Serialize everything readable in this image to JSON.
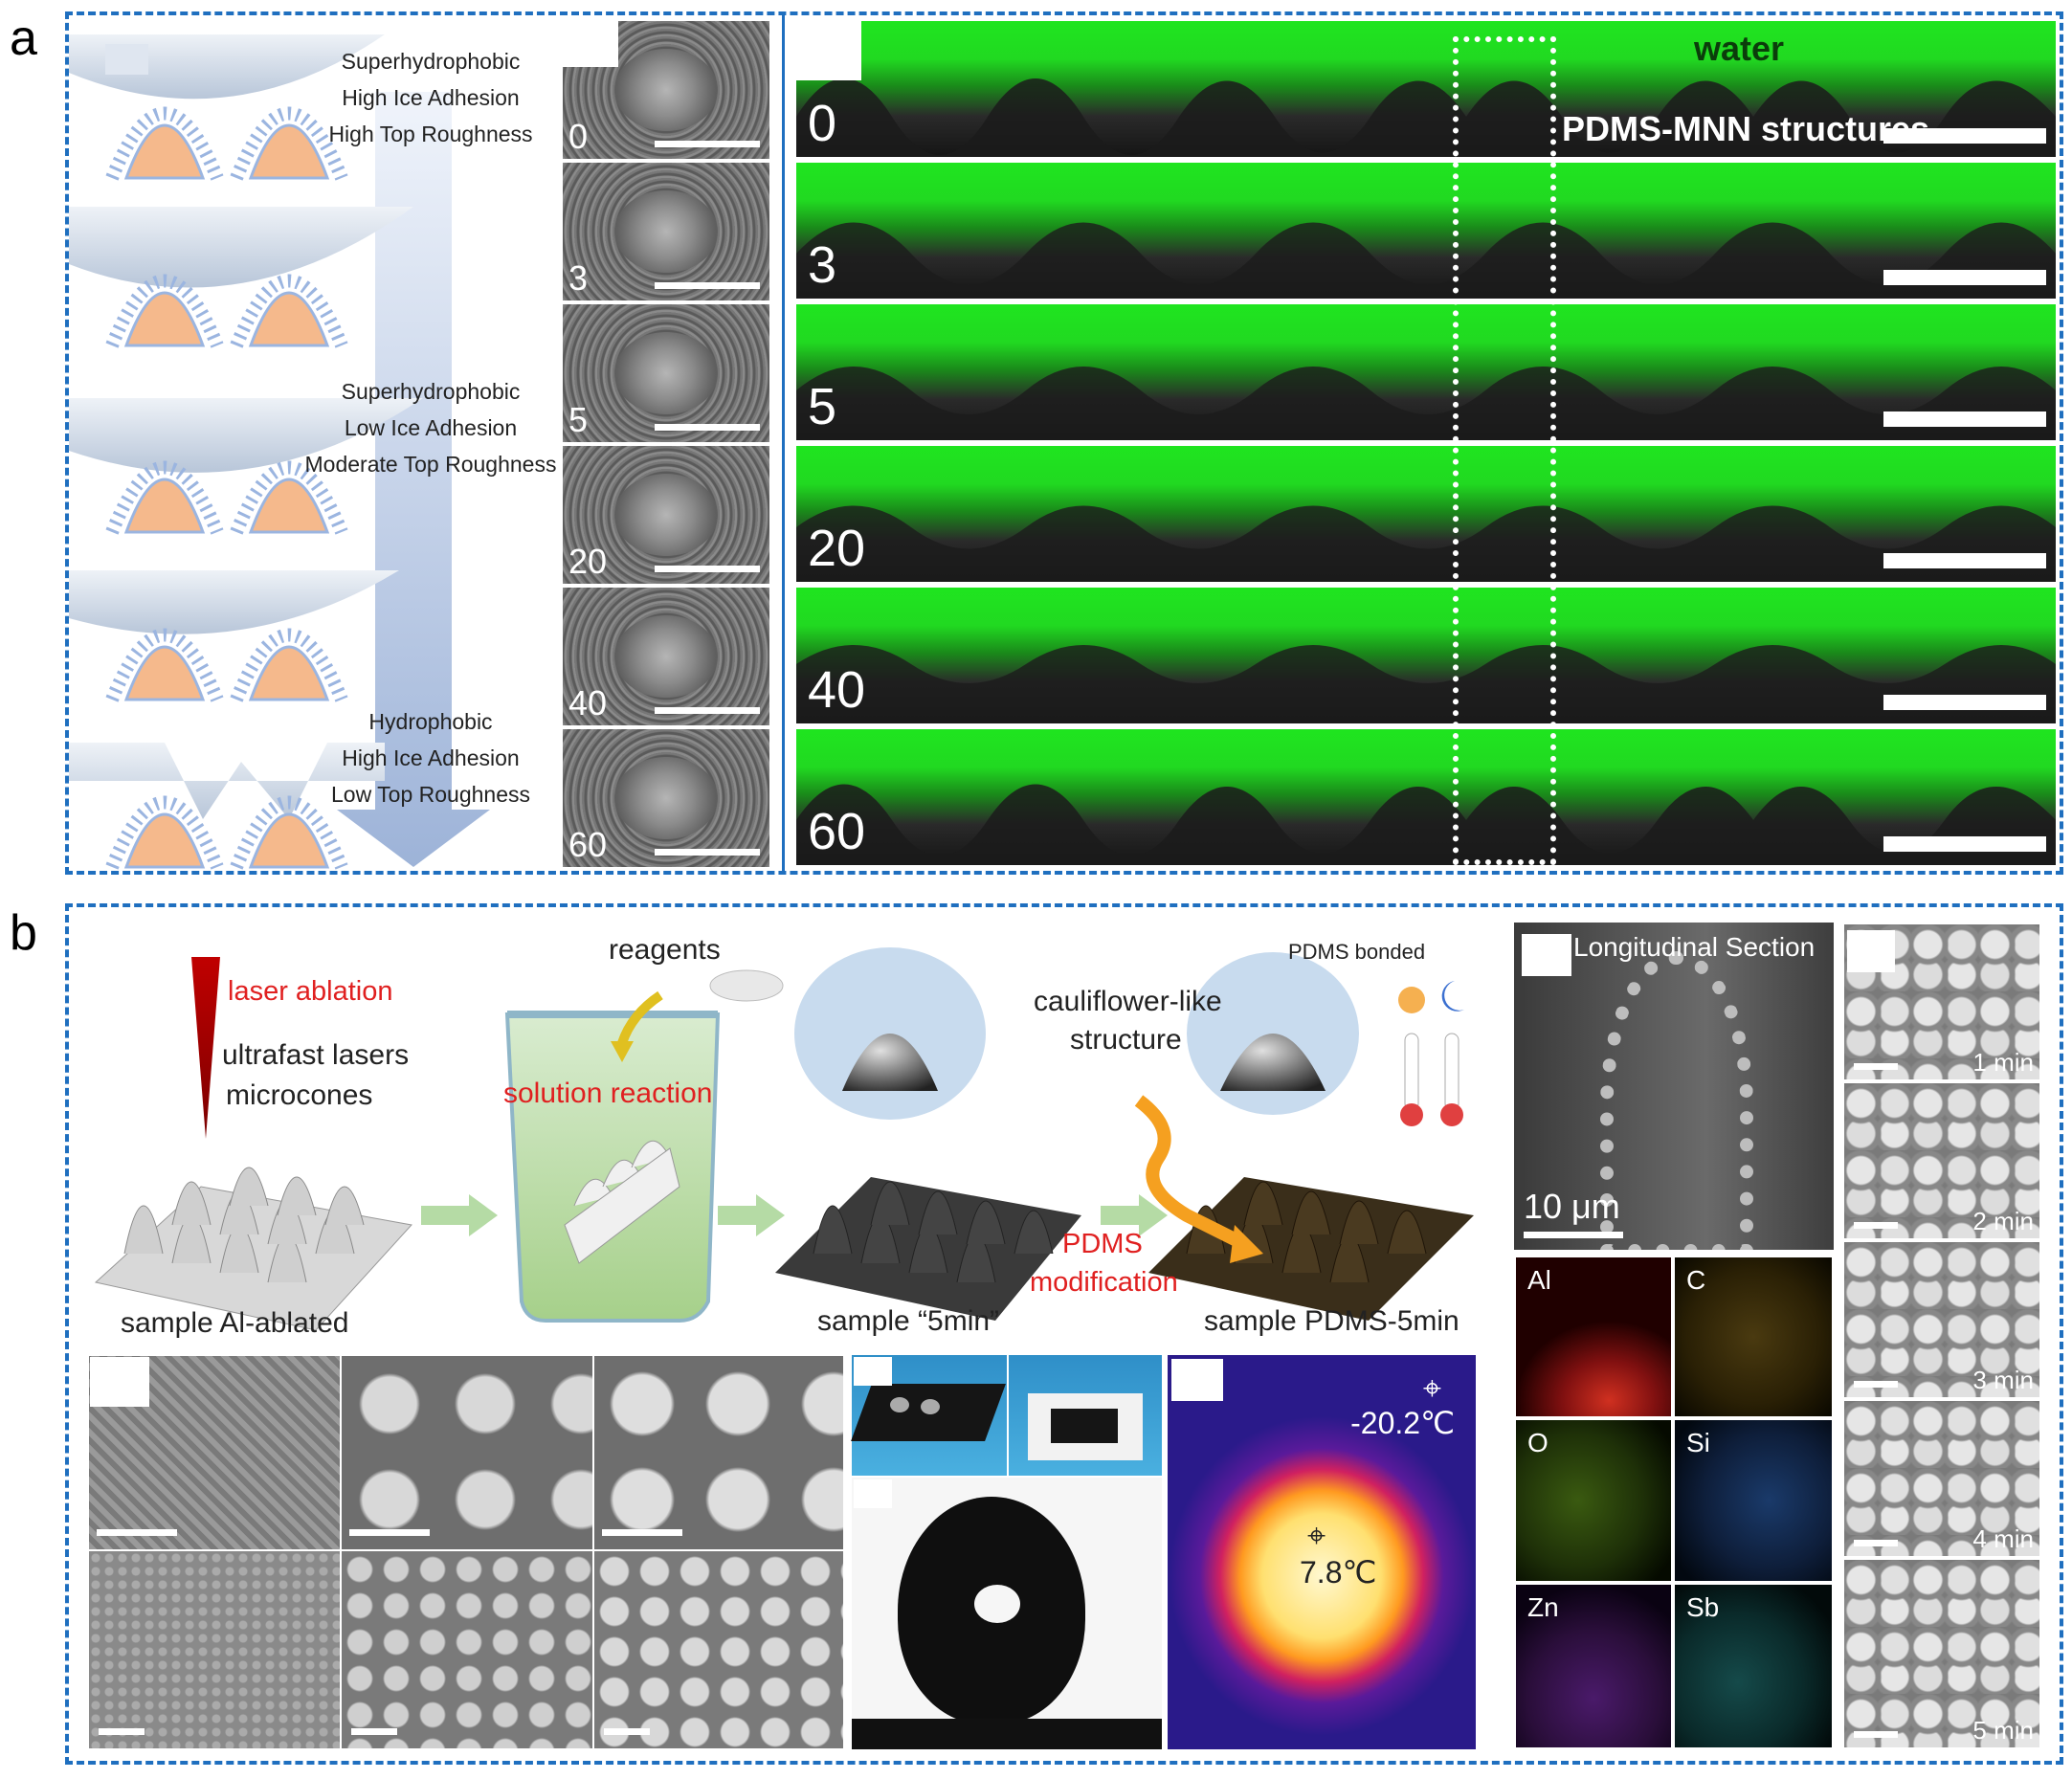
{
  "panel_a": {
    "letter": "a",
    "schematic": {
      "group1": [
        "Superhydrophobic",
        "High Ice Adhesion",
        "High Top Roughness"
      ],
      "group2": [
        "Superhydrophobic",
        "Low Ice Adhesion",
        "Moderate Top Roughness"
      ],
      "group3": [
        "Hydrophobic",
        "High Ice Adhesion",
        "Low Top Roughness"
      ]
    },
    "sem_labels": [
      "0",
      "3",
      "5",
      "20",
      "40",
      "60"
    ],
    "fluorescence": {
      "water_label": "water",
      "structure_label": "PDMS-MNN structures",
      "row_labels": [
        "0",
        "3",
        "5",
        "20",
        "40",
        "60"
      ]
    }
  },
  "panel_b": {
    "letter": "b",
    "process": {
      "laser_ablation": "laser ablation",
      "ultrafast_lasers": "ultrafast lasers",
      "microcones": "microcones",
      "reagents": "reagents",
      "solution_reaction": "solution reaction",
      "cauliflower_1": "cauliflower-like",
      "cauliflower_2": "structure",
      "pdms_bonded": "PDMS bonded",
      "pdms_mod_1": "PDMS",
      "pdms_mod_2": "modification",
      "sample_1": "sample Al-ablated",
      "sample_2": "sample “5min”",
      "sample_3": "sample PDMS-5min"
    },
    "thermal": {
      "temp_ambient": "-20.2℃",
      "temp_center": "7.8℃"
    },
    "longitudinal": {
      "title": "Longitudinal Section",
      "scale": "10 μm"
    },
    "eds_elements": [
      "Al",
      "C",
      "O",
      "Si",
      "Zn",
      "Sb"
    ],
    "time_labels": [
      "1 min",
      "2 min",
      "3 min",
      "4 min",
      "5 min"
    ]
  },
  "colors": {
    "frame": "#1f6fbf",
    "highlight_text": "#e02020",
    "water_green": "#21e021"
  }
}
